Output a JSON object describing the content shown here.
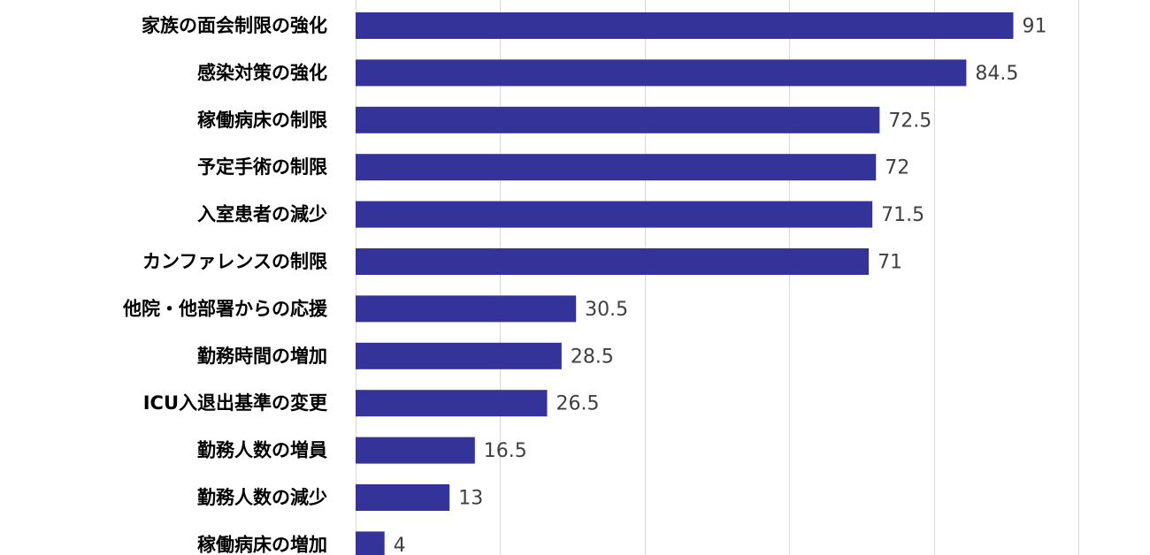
{
  "chart_data": {
    "type": "bar",
    "orientation": "horizontal",
    "categories": [
      "家族の面会制限の強化",
      "感染対策の強化",
      "稼働病床の制限",
      "予定手術の制限",
      "入室患者の減少",
      "カンファレンスの制限",
      "他院・他部署からの応援",
      "勤務時間の増加",
      "ICU入退出基準の変更",
      "勤務人数の増員",
      "勤務人数の減少",
      "稼働病床の増加"
    ],
    "values": [
      91,
      84.5,
      72.5,
      72,
      71.5,
      71,
      30.5,
      28.5,
      26.5,
      16.5,
      13,
      4
    ],
    "value_labels": [
      "91",
      "84.5",
      "72.5",
      "72",
      "71.5",
      "71",
      "30.5",
      "28.5",
      "26.5",
      "16.5",
      "13",
      "4"
    ],
    "title": "",
    "xlabel": "",
    "ylabel": "",
    "xlim": [
      0,
      100
    ],
    "gridlines_at": [
      0,
      20,
      40,
      60,
      80,
      100
    ],
    "grid": true,
    "legend": "none",
    "bar_color": "#333399"
  }
}
